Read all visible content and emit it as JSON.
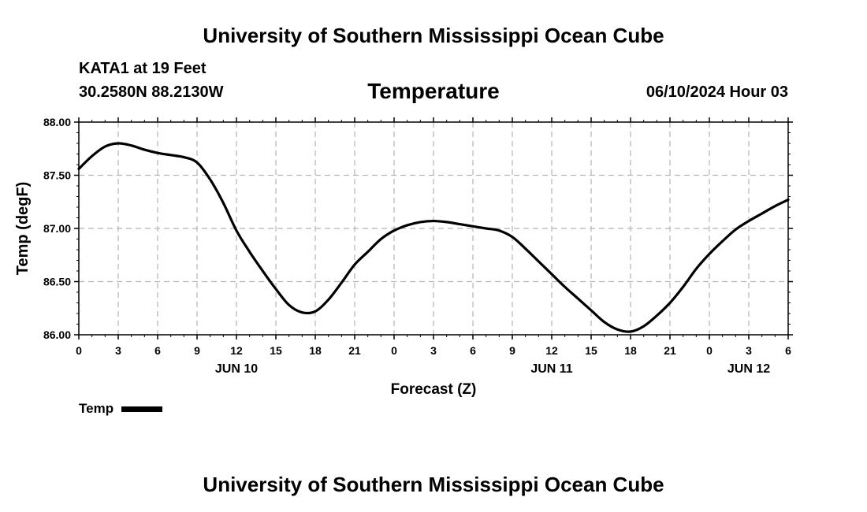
{
  "header": {
    "title": "University of Southern Mississippi Ocean Cube",
    "station": "KATA1 at 19 Feet",
    "coordinates": "30.2580N  88.2130W",
    "chart_title": "Temperature",
    "datetime": "06/10/2024 Hour 03"
  },
  "footer": {
    "title": "University of Southern Mississippi Ocean Cube"
  },
  "legend": {
    "label": "Temp",
    "color": "#000000"
  },
  "chart_data": {
    "type": "line",
    "title": "Temperature",
    "xlabel": "Forecast (Z)",
    "ylabel": "Temp (degF)",
    "ylim": [
      86.0,
      88.0
    ],
    "xlim": [
      "2024-06-10T00:00Z",
      "2024-06-12T06:00Z"
    ],
    "y_ticks": [
      "86.00",
      "86.50",
      "87.00",
      "87.50",
      "88.00"
    ],
    "x_ticks": [
      "0",
      "3",
      "6",
      "9",
      "12",
      "15",
      "18",
      "21",
      "0",
      "3",
      "6",
      "9",
      "12",
      "15",
      "18",
      "21",
      "0",
      "3",
      "6"
    ],
    "date_labels": [
      {
        "label": "JUN 10",
        "at": "2024-06-10T12:00Z"
      },
      {
        "label": "JUN 11",
        "at": "2024-06-11T12:00Z"
      },
      {
        "label": "JUN 12",
        "at": "2024-06-12T03:00Z"
      }
    ],
    "grid": true,
    "legend_position": "bottom-left",
    "series": [
      {
        "name": "Temp",
        "color": "#000000",
        "x": [
          "2024-06-10T00:00Z",
          "2024-06-10T01:00Z",
          "2024-06-10T02:00Z",
          "2024-06-10T03:00Z",
          "2024-06-10T04:00Z",
          "2024-06-10T05:00Z",
          "2024-06-10T06:00Z",
          "2024-06-10T07:00Z",
          "2024-06-10T08:00Z",
          "2024-06-10T09:00Z",
          "2024-06-10T10:00Z",
          "2024-06-10T11:00Z",
          "2024-06-10T12:00Z",
          "2024-06-10T13:00Z",
          "2024-06-10T14:00Z",
          "2024-06-10T15:00Z",
          "2024-06-10T16:00Z",
          "2024-06-10T17:00Z",
          "2024-06-10T18:00Z",
          "2024-06-10T19:00Z",
          "2024-06-10T20:00Z",
          "2024-06-10T21:00Z",
          "2024-06-10T22:00Z",
          "2024-06-10T23:00Z",
          "2024-06-11T00:00Z",
          "2024-06-11T01:00Z",
          "2024-06-11T02:00Z",
          "2024-06-11T03:00Z",
          "2024-06-11T04:00Z",
          "2024-06-11T05:00Z",
          "2024-06-11T06:00Z",
          "2024-06-11T07:00Z",
          "2024-06-11T08:00Z",
          "2024-06-11T09:00Z",
          "2024-06-11T10:00Z",
          "2024-06-11T11:00Z",
          "2024-06-11T12:00Z",
          "2024-06-11T13:00Z",
          "2024-06-11T14:00Z",
          "2024-06-11T15:00Z",
          "2024-06-11T16:00Z",
          "2024-06-11T17:00Z",
          "2024-06-11T18:00Z",
          "2024-06-11T19:00Z",
          "2024-06-11T20:00Z",
          "2024-06-11T21:00Z",
          "2024-06-11T22:00Z",
          "2024-06-11T23:00Z",
          "2024-06-12T00:00Z",
          "2024-06-12T01:00Z",
          "2024-06-12T02:00Z",
          "2024-06-12T03:00Z",
          "2024-06-12T04:00Z",
          "2024-06-12T05:00Z",
          "2024-06-12T06:00Z"
        ],
        "values": [
          87.56,
          87.68,
          87.77,
          87.8,
          87.78,
          87.74,
          87.71,
          87.69,
          87.67,
          87.62,
          87.46,
          87.24,
          86.98,
          86.78,
          86.6,
          86.43,
          86.28,
          86.21,
          86.22,
          86.33,
          86.49,
          86.66,
          86.78,
          86.9,
          86.98,
          87.03,
          87.06,
          87.07,
          87.06,
          87.04,
          87.02,
          87.0,
          86.98,
          86.92,
          86.81,
          86.69,
          86.57,
          86.45,
          86.34,
          86.23,
          86.12,
          86.05,
          86.03,
          86.08,
          86.18,
          86.3,
          86.45,
          86.62,
          86.76,
          86.88,
          86.99,
          87.07,
          87.14,
          87.21,
          87.27
        ]
      }
    ]
  }
}
